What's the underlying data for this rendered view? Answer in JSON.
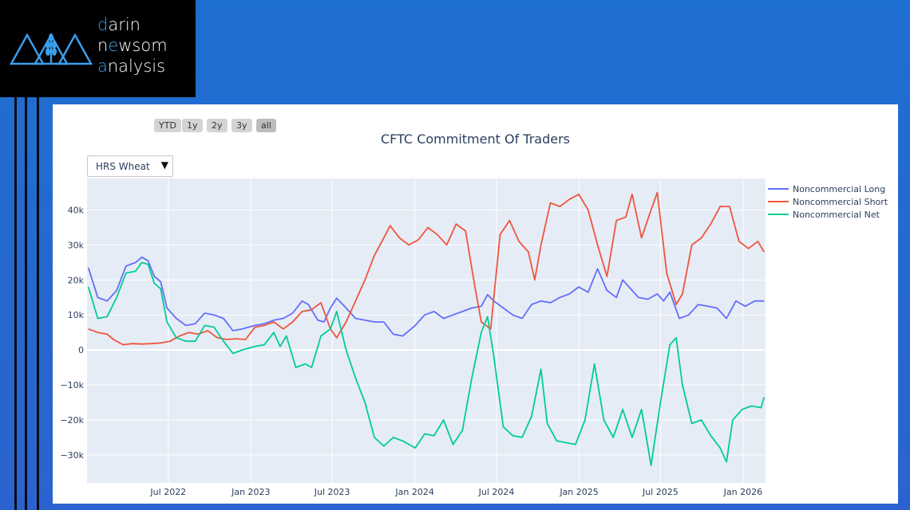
{
  "logo": {
    "line1_hl": "d",
    "line1_rest": "arin",
    "line2_a": "n",
    "line2_hl": "e",
    "line2_b": "w",
    "line2_c": "som",
    "line3_hl": "a",
    "line3_rest": "nalysis"
  },
  "range_selector": {
    "buttons": [
      "YTD",
      "1y",
      "2y",
      "3y",
      "all"
    ],
    "active": "all"
  },
  "dropdown": {
    "selected": "HRS Wheat"
  },
  "colors": {
    "long": "#636efa",
    "short": "#ef553b",
    "net": "#00cc96",
    "plot_bg": "#e5ecf6",
    "accent": "#3aa0f0"
  },
  "chart_data": {
    "type": "line",
    "title": "CFTC Commitment Of Traders",
    "xlabel": "",
    "ylabel": "",
    "xlim": [
      "2022-01-01",
      "2026-02-20"
    ],
    "ylim": [
      -38000,
      49000
    ],
    "grid": true,
    "legend_position": "right",
    "x_ticks": [
      {
        "date": "2022-07-01",
        "label": "Jul 2022"
      },
      {
        "date": "2023-01-01",
        "label": "Jan 2023"
      },
      {
        "date": "2023-07-01",
        "label": "Jul 2023"
      },
      {
        "date": "2024-01-01",
        "label": "Jan 2024"
      },
      {
        "date": "2024-07-01",
        "label": "Jul 2024"
      },
      {
        "date": "2025-01-01",
        "label": "Jan 2025"
      },
      {
        "date": "2025-07-01",
        "label": "Jul 2025"
      },
      {
        "date": "2026-01-01",
        "label": "Jan 2026"
      }
    ],
    "y_ticks": [
      {
        "value": 40000,
        "label": "40k"
      },
      {
        "value": 30000,
        "label": "30k"
      },
      {
        "value": 20000,
        "label": "20k"
      },
      {
        "value": 10000,
        "label": "10k"
      },
      {
        "value": 0,
        "label": "0"
      },
      {
        "value": -10000,
        "label": "−10k"
      },
      {
        "value": -20000,
        "label": "−20k"
      },
      {
        "value": -30000,
        "label": "−30k"
      }
    ],
    "series": [
      {
        "name": "Noncommercial Long",
        "color": "#636efa",
        "points": [
          [
            "2022-01-04",
            23500
          ],
          [
            "2022-01-25",
            15000
          ],
          [
            "2022-02-15",
            14000
          ],
          [
            "2022-03-08",
            17000
          ],
          [
            "2022-03-29",
            24000
          ],
          [
            "2022-04-19",
            25000
          ],
          [
            "2022-05-03",
            26500
          ],
          [
            "2022-05-17",
            25500
          ],
          [
            "2022-05-31",
            21000
          ],
          [
            "2022-06-14",
            19500
          ],
          [
            "2022-06-28",
            12000
          ],
          [
            "2022-07-19",
            9000
          ],
          [
            "2022-08-09",
            7000
          ],
          [
            "2022-08-30",
            7500
          ],
          [
            "2022-09-20",
            10500
          ],
          [
            "2022-10-11",
            10000
          ],
          [
            "2022-11-01",
            9000
          ],
          [
            "2022-11-22",
            5500
          ],
          [
            "2022-12-13",
            6000
          ],
          [
            "2023-01-10",
            7000
          ],
          [
            "2023-01-31",
            7500
          ],
          [
            "2023-02-21",
            8500
          ],
          [
            "2023-03-14",
            9000
          ],
          [
            "2023-04-04",
            10500
          ],
          [
            "2023-04-25",
            14000
          ],
          [
            "2023-05-09",
            13000
          ],
          [
            "2023-05-30",
            8500
          ],
          [
            "2023-06-13",
            8000
          ],
          [
            "2023-06-27",
            12000
          ],
          [
            "2023-07-11",
            14800
          ],
          [
            "2023-08-01",
            12000
          ],
          [
            "2023-08-22",
            9000
          ],
          [
            "2023-09-12",
            8500
          ],
          [
            "2023-10-03",
            8000
          ],
          [
            "2023-10-24",
            8000
          ],
          [
            "2023-11-14",
            4500
          ],
          [
            "2023-12-05",
            4000
          ],
          [
            "2024-01-02",
            7000
          ],
          [
            "2024-01-23",
            10000
          ],
          [
            "2024-02-13",
            11000
          ],
          [
            "2024-03-05",
            9000
          ],
          [
            "2024-03-26",
            10000
          ],
          [
            "2024-04-16",
            11000
          ],
          [
            "2024-05-07",
            12000
          ],
          [
            "2024-05-28",
            12500
          ],
          [
            "2024-06-11",
            15800
          ],
          [
            "2024-06-25",
            14000
          ],
          [
            "2024-07-16",
            12000
          ],
          [
            "2024-08-06",
            10000
          ],
          [
            "2024-08-27",
            9000
          ],
          [
            "2024-09-17",
            13000
          ],
          [
            "2024-10-08",
            14000
          ],
          [
            "2024-10-29",
            13500
          ],
          [
            "2024-11-19",
            15000
          ],
          [
            "2024-12-10",
            16000
          ],
          [
            "2024-12-31",
            18000
          ],
          [
            "2025-01-21",
            16500
          ],
          [
            "2025-02-11",
            23200
          ],
          [
            "2025-03-04",
            17000
          ],
          [
            "2025-03-25",
            15000
          ],
          [
            "2025-04-08",
            20000
          ],
          [
            "2025-04-22",
            18000
          ],
          [
            "2025-05-13",
            15000
          ],
          [
            "2025-06-03",
            14500
          ],
          [
            "2025-06-24",
            16000
          ],
          [
            "2025-07-08",
            14000
          ],
          [
            "2025-07-22",
            16500
          ],
          [
            "2025-08-12",
            9000
          ],
          [
            "2025-09-02",
            10000
          ],
          [
            "2025-09-23",
            13000
          ],
          [
            "2025-10-14",
            12500
          ],
          [
            "2025-11-04",
            12000
          ],
          [
            "2025-11-25",
            9000
          ],
          [
            "2025-12-16",
            14000
          ],
          [
            "2026-01-06",
            12500
          ],
          [
            "2026-01-27",
            14000
          ],
          [
            "2026-02-17",
            14000
          ]
        ]
      },
      {
        "name": "Noncommercial Short",
        "color": "#ef553b",
        "points": [
          [
            "2022-01-04",
            6000
          ],
          [
            "2022-01-25",
            5000
          ],
          [
            "2022-02-15",
            4500
          ],
          [
            "2022-03-01",
            3000
          ],
          [
            "2022-03-22",
            1500
          ],
          [
            "2022-04-12",
            1800
          ],
          [
            "2022-05-03",
            1700
          ],
          [
            "2022-05-24",
            1800
          ],
          [
            "2022-06-14",
            2000
          ],
          [
            "2022-07-05",
            2500
          ],
          [
            "2022-07-26",
            4000
          ],
          [
            "2022-08-16",
            5000
          ],
          [
            "2022-09-06",
            4500
          ],
          [
            "2022-09-27",
            5500
          ],
          [
            "2022-10-18",
            3500
          ],
          [
            "2022-11-08",
            3000
          ],
          [
            "2022-11-29",
            3200
          ],
          [
            "2022-12-20",
            3000
          ],
          [
            "2023-01-10",
            6500
          ],
          [
            "2023-01-31",
            7000
          ],
          [
            "2023-02-21",
            8000
          ],
          [
            "2023-03-14",
            6000
          ],
          [
            "2023-04-04",
            8000
          ],
          [
            "2023-04-25",
            11000
          ],
          [
            "2023-05-16",
            11500
          ],
          [
            "2023-06-06",
            13500
          ],
          [
            "2023-06-27",
            6000
          ],
          [
            "2023-07-11",
            3500
          ],
          [
            "2023-08-01",
            8000
          ],
          [
            "2023-08-22",
            14000
          ],
          [
            "2023-09-12",
            20000
          ],
          [
            "2023-10-03",
            27000
          ],
          [
            "2023-10-24",
            32000
          ],
          [
            "2023-11-07",
            35500
          ],
          [
            "2023-11-28",
            32000
          ],
          [
            "2023-12-19",
            30000
          ],
          [
            "2024-01-09",
            31500
          ],
          [
            "2024-01-30",
            35000
          ],
          [
            "2024-02-20",
            33000
          ],
          [
            "2024-03-12",
            30000
          ],
          [
            "2024-04-02",
            36000
          ],
          [
            "2024-04-23",
            34000
          ],
          [
            "2024-05-14",
            18000
          ],
          [
            "2024-05-28",
            8000
          ],
          [
            "2024-06-18",
            6000
          ],
          [
            "2024-07-09",
            33000
          ],
          [
            "2024-07-30",
            37000
          ],
          [
            "2024-08-20",
            31000
          ],
          [
            "2024-09-10",
            28000
          ],
          [
            "2024-09-24",
            20000
          ],
          [
            "2024-10-08",
            30000
          ],
          [
            "2024-10-29",
            42000
          ],
          [
            "2024-11-19",
            41000
          ],
          [
            "2024-12-10",
            43000
          ],
          [
            "2024-12-31",
            44500
          ],
          [
            "2025-01-21",
            40000
          ],
          [
            "2025-02-11",
            30000
          ],
          [
            "2025-03-04",
            21000
          ],
          [
            "2025-03-25",
            37000
          ],
          [
            "2025-04-15",
            38000
          ],
          [
            "2025-04-29",
            44500
          ],
          [
            "2025-05-20",
            32000
          ],
          [
            "2025-06-10",
            40000
          ],
          [
            "2025-06-24",
            45000
          ],
          [
            "2025-07-15",
            22000
          ],
          [
            "2025-08-05",
            13000
          ],
          [
            "2025-08-19",
            16000
          ],
          [
            "2025-09-09",
            30000
          ],
          [
            "2025-09-30",
            32000
          ],
          [
            "2025-10-21",
            36000
          ],
          [
            "2025-11-11",
            41000
          ],
          [
            "2025-12-02",
            41000
          ],
          [
            "2025-12-23",
            31000
          ],
          [
            "2026-01-13",
            29000
          ],
          [
            "2026-02-03",
            31000
          ],
          [
            "2026-02-17",
            28000
          ]
        ]
      },
      {
        "name": "Noncommercial Net",
        "color": "#00cc96",
        "points": [
          [
            "2022-01-04",
            18000
          ],
          [
            "2022-01-25",
            9000
          ],
          [
            "2022-02-15",
            9500
          ],
          [
            "2022-03-08",
            15000
          ],
          [
            "2022-03-29",
            22000
          ],
          [
            "2022-04-19",
            22500
          ],
          [
            "2022-05-03",
            25000
          ],
          [
            "2022-05-17",
            24500
          ],
          [
            "2022-05-31",
            19000
          ],
          [
            "2022-06-14",
            17500
          ],
          [
            "2022-06-28",
            8000
          ],
          [
            "2022-07-19",
            3500
          ],
          [
            "2022-08-09",
            2500
          ],
          [
            "2022-08-30",
            2500
          ],
          [
            "2022-09-20",
            7000
          ],
          [
            "2022-10-11",
            6500
          ],
          [
            "2022-11-01",
            2500
          ],
          [
            "2022-11-22",
            -1000
          ],
          [
            "2022-12-13",
            0
          ],
          [
            "2023-01-10",
            1000
          ],
          [
            "2023-01-31",
            1500
          ],
          [
            "2023-02-21",
            5000
          ],
          [
            "2023-03-07",
            1000
          ],
          [
            "2023-03-21",
            4000
          ],
          [
            "2023-04-11",
            -5000
          ],
          [
            "2023-05-02",
            -4000
          ],
          [
            "2023-05-16",
            -5000
          ],
          [
            "2023-06-06",
            4000
          ],
          [
            "2023-06-27",
            6000
          ],
          [
            "2023-07-11",
            11000
          ],
          [
            "2023-08-01",
            0
          ],
          [
            "2023-08-22",
            -8000
          ],
          [
            "2023-09-12",
            -15000
          ],
          [
            "2023-10-03",
            -25000
          ],
          [
            "2023-10-24",
            -27500
          ],
          [
            "2023-11-14",
            -25000
          ],
          [
            "2023-12-05",
            -26000
          ],
          [
            "2024-01-02",
            -28000
          ],
          [
            "2024-01-23",
            -24000
          ],
          [
            "2024-02-13",
            -24500
          ],
          [
            "2024-03-05",
            -20000
          ],
          [
            "2024-03-26",
            -27000
          ],
          [
            "2024-04-16",
            -23000
          ],
          [
            "2024-05-07",
            -8000
          ],
          [
            "2024-05-28",
            5000
          ],
          [
            "2024-06-11",
            9500
          ],
          [
            "2024-06-25",
            -2000
          ],
          [
            "2024-07-16",
            -22000
          ],
          [
            "2024-08-06",
            -24500
          ],
          [
            "2024-08-27",
            -25000
          ],
          [
            "2024-09-17",
            -19000
          ],
          [
            "2024-10-08",
            -5500
          ],
          [
            "2024-10-22",
            -21000
          ],
          [
            "2024-11-12",
            -26000
          ],
          [
            "2024-12-03",
            -26500
          ],
          [
            "2024-12-24",
            -27000
          ],
          [
            "2025-01-14",
            -20000
          ],
          [
            "2025-02-04",
            -4000
          ],
          [
            "2025-02-25",
            -20000
          ],
          [
            "2025-03-18",
            -25000
          ],
          [
            "2025-04-08",
            -17000
          ],
          [
            "2025-04-29",
            -25000
          ],
          [
            "2025-05-20",
            -17000
          ],
          [
            "2025-06-10",
            -33000
          ],
          [
            "2025-07-01",
            -15000
          ],
          [
            "2025-07-22",
            1500
          ],
          [
            "2025-08-05",
            3500
          ],
          [
            "2025-08-19",
            -10000
          ],
          [
            "2025-09-09",
            -21000
          ],
          [
            "2025-09-30",
            -20000
          ],
          [
            "2025-10-21",
            -24500
          ],
          [
            "2025-11-11",
            -28000
          ],
          [
            "2025-11-25",
            -32000
          ],
          [
            "2025-12-09",
            -20000
          ],
          [
            "2025-12-30",
            -17000
          ],
          [
            "2026-01-20",
            -16000
          ],
          [
            "2026-02-10",
            -16500
          ],
          [
            "2026-02-17",
            -13500
          ]
        ]
      }
    ]
  }
}
